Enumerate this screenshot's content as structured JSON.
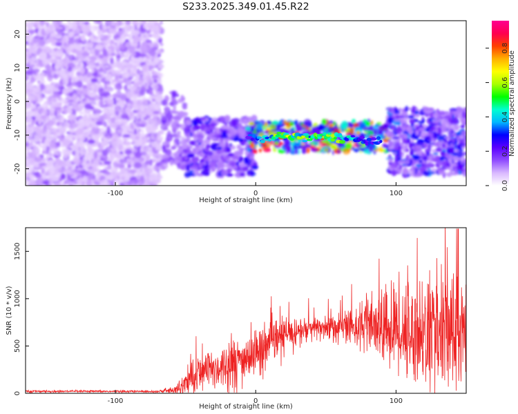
{
  "figure": {
    "title": "S233.2025.349.01.45.R22"
  },
  "chart_data": [
    {
      "type": "heatmap",
      "xlabel": "Height of straight line (km)",
      "ylabel": "Frequency (Hz)",
      "xlim": [
        -164,
        150
      ],
      "ylim": [
        -25,
        24
      ],
      "x_ticks": [
        -100,
        0,
        100
      ],
      "y_ticks": [
        -20,
        -10,
        0,
        10,
        20
      ],
      "colorbar": {
        "label": "Normalized spectral amplitude",
        "range": [
          0,
          0.96
        ],
        "ticks": [
          "0.0",
          "0.2",
          "0.4",
          "0.6",
          "0.8"
        ],
        "colors": [
          "#ffffff",
          "#d9b8ff",
          "#8f4bff",
          "#5b00ff",
          "#0000ff",
          "#00b8ff",
          "#00ffd0",
          "#00ff00",
          "#a8ff00",
          "#ffff00",
          "#ffb000",
          "#ff4000",
          "#ff0050",
          "#ff0090"
        ]
      },
      "regions": [
        {
          "x_range": [
            -164,
            -67
          ],
          "y_range": [
            -25,
            24
          ],
          "amplitude": [
            0.05,
            0.15
          ],
          "density": "high"
        },
        {
          "x_range": [
            -66,
            -50
          ],
          "y_range": [
            -20,
            3
          ],
          "amplitude": [
            0.1,
            0.2
          ],
          "density": "medium"
        },
        {
          "x_range": [
            -50,
            0
          ],
          "y_range": [
            -22,
            -5
          ],
          "amplitude": [
            0.1,
            0.3
          ],
          "density": "high"
        },
        {
          "x_range": [
            -5,
            95
          ],
          "y_range": [
            -15,
            -6
          ],
          "amplitude": [
            0.2,
            0.96
          ],
          "density": "high"
        },
        {
          "x_range": [
            95,
            150
          ],
          "y_range": [
            -22,
            -2
          ],
          "amplitude": [
            0.1,
            0.35
          ],
          "density": "high"
        }
      ],
      "ridge": {
        "x": [
          -5,
          10,
          20,
          30,
          40,
          50,
          60,
          70,
          80,
          90
        ],
        "y": [
          -11,
          -10.8,
          -10.3,
          -10.5,
          -10.4,
          -10.6,
          -10.8,
          -11.2,
          -11.8,
          -12.2
        ],
        "peak_amplitude": [
          0.35,
          0.6,
          0.85,
          0.7,
          0.55,
          0.9,
          0.6,
          0.45,
          0.4,
          0.3
        ]
      }
    },
    {
      "type": "line",
      "xlabel": "Height of straight line (km)",
      "ylabel": "SNR (10 * v/v)",
      "xlim": [
        -164,
        150
      ],
      "ylim": [
        0,
        1750
      ],
      "x_ticks": [
        -100,
        0,
        100
      ],
      "y_ticks": [
        0,
        500,
        1000,
        1500
      ],
      "series": [
        {
          "color": "#ee2222",
          "envelope": {
            "x": [
              -164,
              -120,
              -70,
              -60,
              -55,
              -50,
              -45,
              -40,
              -30,
              -20,
              -10,
              0,
              10,
              20,
              30,
              40,
              50,
              60,
              70,
              80,
              90,
              100,
              110,
              120,
              130,
              140,
              145,
              150
            ],
            "mean": [
              20,
              20,
              20,
              30,
              50,
              120,
              180,
              220,
              260,
              300,
              350,
              420,
              520,
              610,
              650,
              680,
              700,
              700,
              720,
              700,
              680,
              680,
              650,
              640,
              620,
              600,
              560,
              700
            ],
            "amp": [
              10,
              10,
              12,
              30,
              60,
              120,
              200,
              220,
              200,
              220,
              230,
              240,
              240,
              200,
              150,
              120,
              140,
              160,
              200,
              280,
              350,
              450,
              500,
              550,
              600,
              650,
              700,
              500
            ]
          }
        }
      ]
    }
  ]
}
